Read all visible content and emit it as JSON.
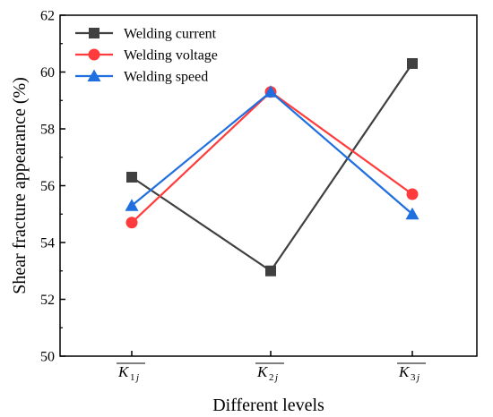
{
  "chart_data": {
    "type": "line",
    "categories": [
      {
        "main": "K",
        "sub": "1",
        "sub_italic": "j"
      },
      {
        "main": "K",
        "sub": "2",
        "sub_italic": "j"
      },
      {
        "main": "K",
        "sub": "3",
        "sub_italic": "j"
      }
    ],
    "xlabel": "Different levels",
    "ylabel": "Shear fracture appearance (%)",
    "ylim": [
      50,
      62
    ],
    "yticks": [
      "50",
      "52",
      "54",
      "56",
      "58",
      "60",
      "62"
    ],
    "grid": false,
    "legend_position": "top-left",
    "series": [
      {
        "name": "Welding current",
        "values": [
          56.3,
          53.0,
          60.3
        ],
        "color": "#404040",
        "marker": "square"
      },
      {
        "name": "Welding voltage",
        "values": [
          54.7,
          59.3,
          55.7
        ],
        "color": "#ff3b3b",
        "marker": "circle"
      },
      {
        "name": "Welding speed",
        "values": [
          55.3,
          59.3,
          55.0
        ],
        "color": "#1f6fe0",
        "marker": "triangle"
      }
    ]
  }
}
